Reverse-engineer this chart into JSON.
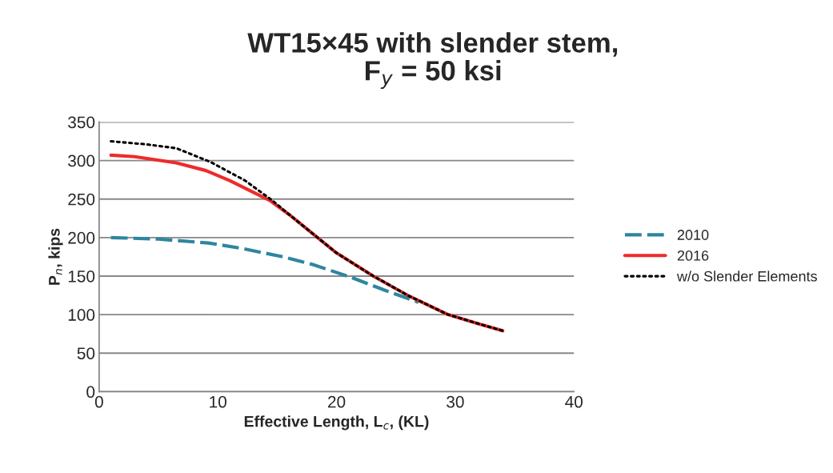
{
  "chart_data": {
    "type": "line",
    "title": "WT15×45 with slender stem,\nF$_{y}$ = 50 ksi",
    "xlabel": "Effective Length, L$_{c}$, (KL)",
    "ylabel": "P$_{n}$, kips",
    "xlim": [
      0,
      40
    ],
    "xticks": [
      0,
      10,
      20,
      30,
      40
    ],
    "ylim": [
      0,
      350
    ],
    "yticks": [
      0,
      50,
      100,
      150,
      200,
      250,
      300,
      350
    ],
    "grid": "y",
    "legend": "right",
    "series": [
      {
        "name": "2010",
        "color": "#2e86a0",
        "line_style": "dashed",
        "x": [
          1,
          5,
          9.2,
          12,
          15.5,
          18,
          21.3,
          24,
          26.9
        ],
        "values": [
          200,
          198,
          193,
          186,
          175,
          165,
          148,
          132,
          116
        ]
      },
      {
        "name": "2016",
        "color": "#ee2b2b",
        "line_style": "solid",
        "x": [
          1,
          3,
          6.5,
          9,
          11,
          14.4,
          16,
          18.4,
          20,
          23.1,
          26,
          29.4,
          32,
          34
        ],
        "values": [
          307,
          305,
          297,
          287,
          274,
          248,
          230,
          200,
          180,
          150,
          125,
          100,
          88,
          79
        ]
      },
      {
        "name": "w/o Slender Elements",
        "color": "#000000",
        "line_style": "dotted",
        "x": [
          1,
          4,
          6.5,
          9.4,
          12.3,
          14.6,
          16,
          18.4,
          20,
          23.1,
          26,
          29.4,
          32,
          34
        ],
        "values": [
          325,
          321,
          316,
          298,
          274,
          248,
          230,
          200,
          180,
          150,
          125,
          100,
          88,
          79
        ]
      }
    ]
  }
}
